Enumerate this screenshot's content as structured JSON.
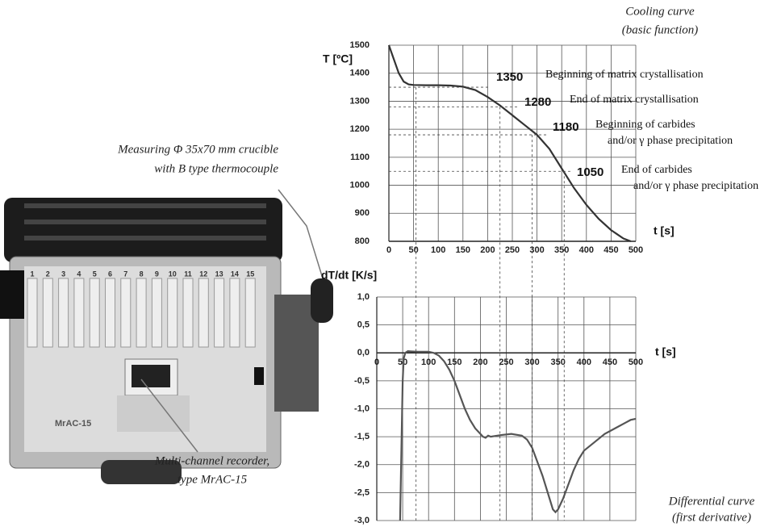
{
  "chart_data": [
    {
      "type": "line",
      "title": "Cooling curve",
      "subtitle": "(basic function)",
      "y_label": "T [ºC]",
      "x_label": "t [s]",
      "grid": true,
      "xlim": [
        0,
        500
      ],
      "xticks": [
        0,
        50,
        100,
        150,
        200,
        250,
        300,
        350,
        400,
        450,
        500
      ],
      "ylim": [
        800,
        1500
      ],
      "yticks": [
        800,
        900,
        1000,
        1100,
        1200,
        1300,
        1400,
        1500
      ],
      "series": [
        {
          "color": "#333333",
          "x": [
            0,
            10,
            20,
            30,
            40,
            50,
            75,
            100,
            125,
            150,
            175,
            200,
            225,
            250,
            275,
            300,
            325,
            350,
            375,
            400,
            425,
            450,
            475,
            490
          ],
          "values": [
            1500,
            1450,
            1400,
            1370,
            1360,
            1358,
            1357,
            1357,
            1356,
            1352,
            1340,
            1315,
            1285,
            1250,
            1215,
            1180,
            1130,
            1060,
            990,
            930,
            880,
            840,
            810,
            800
          ]
        }
      ],
      "annotations": [
        {
          "value": 1350,
          "t": 55,
          "text": [
            "Beginning of matrix crystallisation"
          ]
        },
        {
          "value": 1280,
          "t": 225,
          "text": [
            "End of matrix crystallisation"
          ]
        },
        {
          "value": 1180,
          "t": 290,
          "text": [
            "Beginning of carbides",
            "and/or γ phase precipitation"
          ]
        },
        {
          "value": 1050,
          "t": 355,
          "text": [
            "End of carbides",
            "and/or γ phase precipitation"
          ]
        }
      ]
    },
    {
      "type": "line",
      "title": "Differential curve",
      "subtitle": "(first derivative)",
      "y_label": "dT/dt [K/s]",
      "x_label": "t [s]",
      "grid": true,
      "xlim": [
        0,
        500
      ],
      "xticks": [
        0,
        50,
        100,
        150,
        200,
        250,
        300,
        350,
        400,
        450,
        500
      ],
      "ylim": [
        -3,
        1
      ],
      "yticks": [
        {
          "value": -3,
          "label": "-3,0"
        },
        {
          "value": -2.5,
          "label": "-2,5"
        },
        {
          "value": -2,
          "label": "-2,0"
        },
        {
          "value": -1.5,
          "label": "-1,5"
        },
        {
          "value": -1,
          "label": "-1,0"
        },
        {
          "value": -0.5,
          "label": "-0,5"
        },
        {
          "value": 0,
          "label": "0,0"
        },
        {
          "value": 0.5,
          "label": "0,5"
        },
        {
          "value": 1,
          "label": "1,0"
        }
      ],
      "series": [
        {
          "color": "#555555",
          "x": [
            45,
            48,
            50,
            52,
            55,
            60,
            80,
            100,
            110,
            120,
            130,
            140,
            150,
            160,
            170,
            180,
            190,
            200,
            205,
            210,
            215,
            220,
            240,
            260,
            280,
            290,
            300,
            310,
            320,
            330,
            340,
            345,
            350,
            355,
            360,
            370,
            380,
            390,
            400,
            420,
            440,
            460,
            480,
            490,
            500
          ],
          "values": [
            -3.0,
            -1.5,
            -0.5,
            -0.1,
            0.0,
            0.03,
            0.02,
            0.02,
            0.0,
            -0.05,
            -0.15,
            -0.3,
            -0.5,
            -0.75,
            -1.0,
            -1.2,
            -1.35,
            -1.45,
            -1.5,
            -1.52,
            -1.48,
            -1.5,
            -1.47,
            -1.45,
            -1.48,
            -1.55,
            -1.7,
            -1.95,
            -2.2,
            -2.5,
            -2.8,
            -2.85,
            -2.8,
            -2.7,
            -2.6,
            -2.35,
            -2.1,
            -1.9,
            -1.75,
            -1.6,
            -1.45,
            -1.35,
            -1.25,
            -1.2,
            -1.18
          ]
        }
      ]
    }
  ],
  "captions": {
    "crucible": [
      "Measuring Φ 35x70 mm crucible",
      "with B type thermocouple"
    ],
    "recorder": [
      "Multi-channel recorder,",
      "type MrAC-15"
    ]
  },
  "device": {
    "label": "MrAC-15",
    "channels": [
      "1",
      "2",
      "3",
      "4",
      "5",
      "6",
      "7",
      "8",
      "9",
      "10",
      "11",
      "12",
      "13",
      "14",
      "15"
    ]
  }
}
